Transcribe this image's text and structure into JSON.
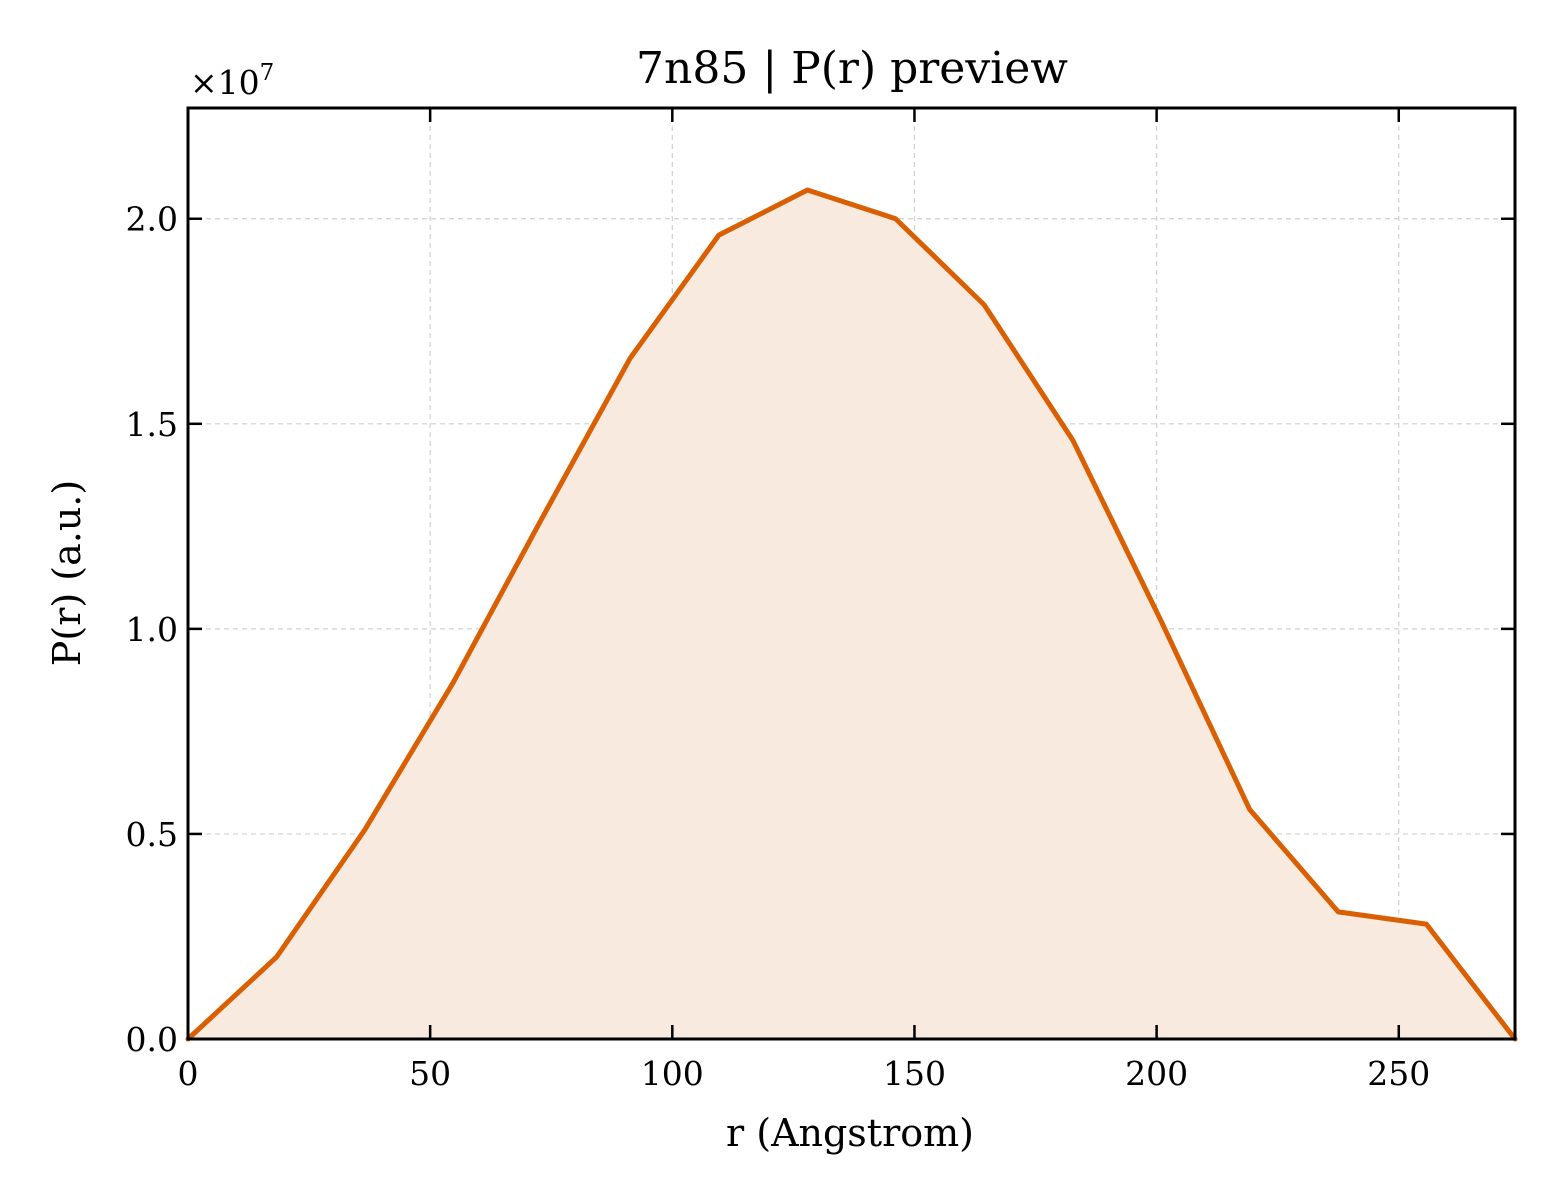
{
  "chart_data": {
    "type": "area",
    "title": "7n85 | P(r) preview",
    "xlabel": "r (Angstrom)",
    "ylabel": "P(r) (a.u.)",
    "y_offset_label": "×10",
    "y_offset_exponent": "7",
    "y_multiplier": 10000000,
    "xlim": [
      0,
      274
    ],
    "ylim": [
      0,
      2.27
    ],
    "x_ticks": [
      0,
      50,
      100,
      150,
      200,
      250
    ],
    "x_tick_labels": [
      "0",
      "50",
      "100",
      "150",
      "200",
      "250"
    ],
    "y_ticks": [
      0,
      0.5,
      1.0,
      1.5,
      2.0
    ],
    "y_tick_labels": [
      "0.0",
      "0.5",
      "1.0",
      "1.5",
      "2.0"
    ],
    "grid": true,
    "series": [
      {
        "x": [
          0,
          18.3,
          36.5,
          54.8,
          73.1,
          91.3,
          109.6,
          127.9,
          146.1,
          164.4,
          182.7,
          200.9,
          219.2,
          237.5,
          255.7,
          274
        ],
        "y": [
          0.0,
          0.2,
          0.51,
          0.87,
          1.27,
          1.66,
          1.96,
          2.07,
          2.0,
          1.79,
          1.46,
          1.02,
          0.56,
          0.31,
          0.28,
          0.0
        ],
        "color": "#d95f02",
        "fill": "#f9eae0"
      }
    ]
  }
}
